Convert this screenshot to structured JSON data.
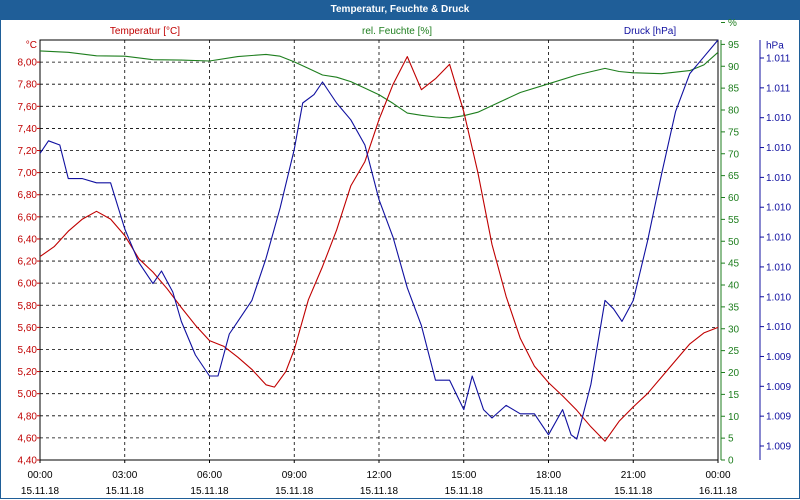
{
  "title": "Temperatur, Feuchte & Druck",
  "chart_data": {
    "type": "line",
    "series": [
      {
        "name": "Temperatur [°C]",
        "unit": "°C",
        "axis": "left",
        "color": "#c00000",
        "ylim": [
          4.4,
          8.2
        ],
        "ticks": [
          "4,40",
          "4,60",
          "4,80",
          "5,00",
          "5,20",
          "5,40",
          "5,60",
          "5,80",
          "6,00",
          "6,20",
          "6,40",
          "6,60",
          "6,80",
          "7,00",
          "7,20",
          "7,40",
          "7,60",
          "7,80",
          "8,00"
        ],
        "points": [
          [
            0,
            6.24
          ],
          [
            0.5,
            6.33
          ],
          [
            1,
            6.47
          ],
          [
            1.5,
            6.58
          ],
          [
            2,
            6.65
          ],
          [
            2.5,
            6.58
          ],
          [
            3,
            6.43
          ],
          [
            3.5,
            6.22
          ],
          [
            4,
            6.1
          ],
          [
            4.5,
            5.95
          ],
          [
            5,
            5.78
          ],
          [
            5.5,
            5.62
          ],
          [
            6,
            5.48
          ],
          [
            6.5,
            5.43
          ],
          [
            7,
            5.33
          ],
          [
            7.5,
            5.22
          ],
          [
            8,
            5.08
          ],
          [
            8.3,
            5.06
          ],
          [
            8.7,
            5.2
          ],
          [
            9,
            5.4
          ],
          [
            9.5,
            5.85
          ],
          [
            10,
            6.15
          ],
          [
            10.5,
            6.48
          ],
          [
            11,
            6.88
          ],
          [
            11.5,
            7.1
          ],
          [
            12,
            7.48
          ],
          [
            12.5,
            7.8
          ],
          [
            13,
            8.05
          ],
          [
            13.5,
            7.75
          ],
          [
            14,
            7.85
          ],
          [
            14.5,
            7.98
          ],
          [
            15,
            7.55
          ],
          [
            15.5,
            7.0
          ],
          [
            16,
            6.35
          ],
          [
            16.5,
            5.88
          ],
          [
            17,
            5.5
          ],
          [
            17.5,
            5.25
          ],
          [
            18,
            5.1
          ],
          [
            18.5,
            4.98
          ],
          [
            19,
            4.85
          ],
          [
            19.5,
            4.7
          ],
          [
            20,
            4.57
          ],
          [
            20.5,
            4.75
          ],
          [
            21,
            4.88
          ],
          [
            21.5,
            5.0
          ],
          [
            22,
            5.15
          ],
          [
            22.5,
            5.3
          ],
          [
            23,
            5.45
          ],
          [
            23.5,
            5.55
          ],
          [
            24,
            5.6
          ]
        ]
      },
      {
        "name": "rel. Feuchte [%]",
        "unit": "%",
        "axis": "right-inner",
        "color": "#1e7e1e",
        "ylim": [
          0,
          96
        ],
        "ticks": [
          "0",
          "5",
          "10",
          "15",
          "20",
          "25",
          "30",
          "35",
          "40",
          "45",
          "50",
          "55",
          "60",
          "65",
          "70",
          "75",
          "80",
          "85",
          "90",
          "95",
          "%"
        ],
        "points": [
          [
            0,
            93.5
          ],
          [
            1,
            93.2
          ],
          [
            2,
            92.4
          ],
          [
            3,
            92.3
          ],
          [
            4,
            91.5
          ],
          [
            5,
            91.4
          ],
          [
            6,
            91.2
          ],
          [
            7,
            92.2
          ],
          [
            8,
            92.7
          ],
          [
            8.5,
            92.3
          ],
          [
            9,
            91.0
          ],
          [
            9.5,
            89.5
          ],
          [
            10,
            88.0
          ],
          [
            10.5,
            87.5
          ],
          [
            11,
            86.5
          ],
          [
            11.5,
            85.0
          ],
          [
            12,
            83.5
          ],
          [
            12.5,
            81.5
          ],
          [
            13,
            79.3
          ],
          [
            13.5,
            78.8
          ],
          [
            14,
            78.4
          ],
          [
            14.5,
            78.2
          ],
          [
            15,
            78.7
          ],
          [
            15.5,
            79.5
          ],
          [
            16,
            81.0
          ],
          [
            17,
            84.0
          ],
          [
            18,
            86.0
          ],
          [
            19,
            88.0
          ],
          [
            20,
            89.5
          ],
          [
            20.5,
            88.8
          ],
          [
            21,
            88.5
          ],
          [
            22,
            88.3
          ],
          [
            23,
            89.0
          ],
          [
            23.5,
            90.3
          ],
          [
            24,
            93.2
          ]
        ]
      },
      {
        "name": "Druck [hPa]",
        "unit": "hPa",
        "axis": "right-outer",
        "color": "#1010a0",
        "ylim": [
          0,
          1
        ],
        "ticks": [
          "1.009",
          "1.009",
          "1.009",
          "1.009",
          "1.010",
          "1.010",
          "1.010",
          "1.010",
          "1.010",
          "1.010",
          "1.010",
          "1.010",
          "1.011",
          "1.011",
          "hPa"
        ],
        "points": [
          [
            0,
            0.73
          ],
          [
            0.3,
            0.76
          ],
          [
            0.7,
            0.75
          ],
          [
            1,
            0.67
          ],
          [
            1.5,
            0.67
          ],
          [
            2,
            0.66
          ],
          [
            2.5,
            0.66
          ],
          [
            3,
            0.55
          ],
          [
            3.5,
            0.47
          ],
          [
            4,
            0.42
          ],
          [
            4.3,
            0.45
          ],
          [
            4.7,
            0.4
          ],
          [
            5,
            0.33
          ],
          [
            5.5,
            0.25
          ],
          [
            6,
            0.2
          ],
          [
            6.3,
            0.2
          ],
          [
            6.7,
            0.3
          ],
          [
            7,
            0.33
          ],
          [
            7.5,
            0.38
          ],
          [
            8,
            0.48
          ],
          [
            8.5,
            0.6
          ],
          [
            9,
            0.74
          ],
          [
            9.3,
            0.85
          ],
          [
            9.7,
            0.87
          ],
          [
            10,
            0.9
          ],
          [
            10.5,
            0.85
          ],
          [
            11,
            0.81
          ],
          [
            11.5,
            0.75
          ],
          [
            12,
            0.62
          ],
          [
            12.5,
            0.53
          ],
          [
            13,
            0.41
          ],
          [
            13.5,
            0.32
          ],
          [
            14,
            0.19
          ],
          [
            14.5,
            0.19
          ],
          [
            15,
            0.12
          ],
          [
            15.3,
            0.2
          ],
          [
            15.7,
            0.12
          ],
          [
            16,
            0.1
          ],
          [
            16.5,
            0.13
          ],
          [
            17,
            0.11
          ],
          [
            17.5,
            0.11
          ],
          [
            18,
            0.06
          ],
          [
            18.5,
            0.12
          ],
          [
            18.8,
            0.06
          ],
          [
            19,
            0.05
          ],
          [
            19.5,
            0.18
          ],
          [
            20,
            0.38
          ],
          [
            20.3,
            0.36
          ],
          [
            20.6,
            0.33
          ],
          [
            21,
            0.38
          ],
          [
            21.5,
            0.52
          ],
          [
            22,
            0.68
          ],
          [
            22.5,
            0.83
          ],
          [
            23,
            0.92
          ],
          [
            23.5,
            0.96
          ],
          [
            24,
            1.0
          ]
        ]
      }
    ],
    "x_ticks": [
      {
        "time": "00:00",
        "date": "15.11.18"
      },
      {
        "time": "03:00",
        "date": "15.11.18"
      },
      {
        "time": "06:00",
        "date": "15.11.18"
      },
      {
        "time": "09:00",
        "date": "15.11.18"
      },
      {
        "time": "12:00",
        "date": "15.11.18"
      },
      {
        "time": "15:00",
        "date": "15.11.18"
      },
      {
        "time": "18:00",
        "date": "15.11.18"
      },
      {
        "time": "21:00",
        "date": "15.11.18"
      },
      {
        "time": "00:00",
        "date": "16.11.18"
      }
    ],
    "left_unit_label": "°C",
    "xlim_hours": [
      0,
      24
    ],
    "grid": true
  }
}
